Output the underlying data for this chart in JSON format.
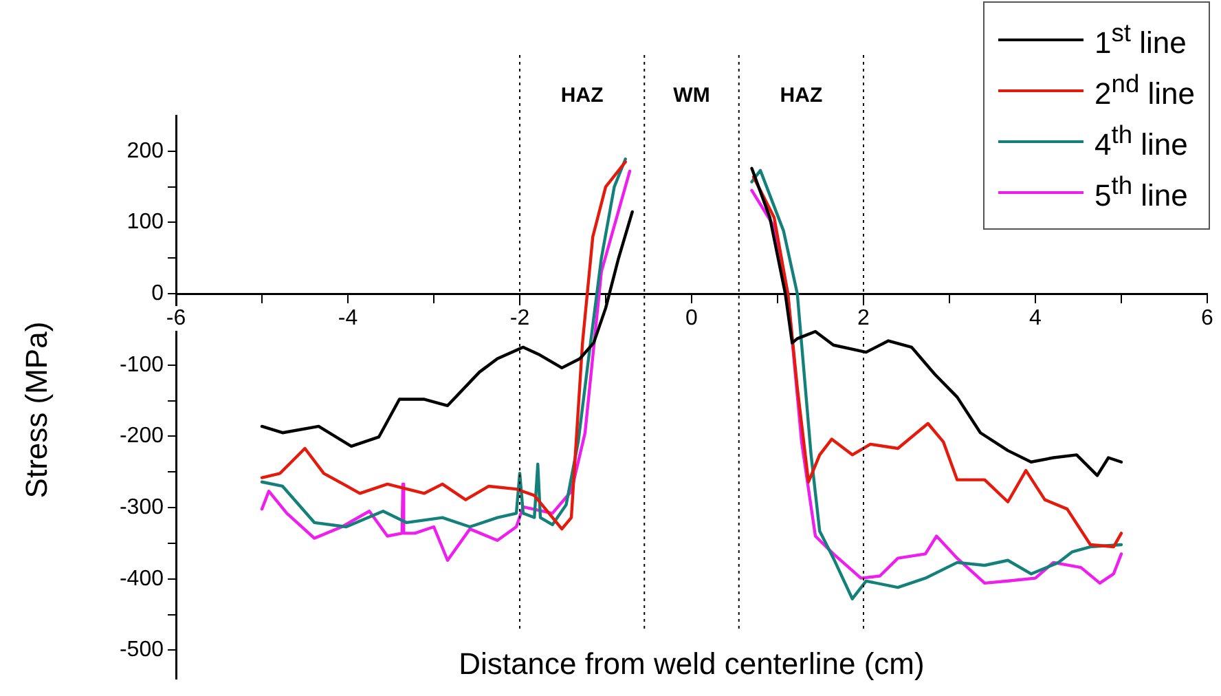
{
  "chart_data": {
    "type": "line",
    "xlabel": "Distance from weld centerline (cm)",
    "ylabel": "Stress (MPa)",
    "xlim": [
      -6,
      6
    ],
    "xticks": [
      -6,
      {
        "value": -5,
        "label": null
      },
      -4,
      {
        "value": -3,
        "label": null
      },
      -2,
      {
        "value": -1,
        "label": null
      },
      0,
      {
        "value": 1,
        "label": null
      },
      2,
      {
        "value": 3,
        "label": null
      },
      4,
      {
        "value": 5,
        "label": null
      },
      6
    ],
    "ylim": [
      -540,
      250
    ],
    "yticks": [
      -500,
      {
        "value": -450,
        "label": null
      },
      -400,
      {
        "value": -350,
        "label": null
      },
      -300,
      {
        "value": -250,
        "label": null
      },
      -200,
      {
        "value": -150,
        "label": null
      },
      -100,
      {
        "value": -50,
        "label": null
      },
      0,
      {
        "value": 50,
        "label": null
      },
      100,
      {
        "value": 150,
        "label": null
      },
      200
    ],
    "legend": "top right",
    "marker": "none",
    "line_style": "solid",
    "ref_lines": [
      {
        "axis": "x",
        "value": -2,
        "line_style": "dotted"
      },
      {
        "axis": "x",
        "value": -0.55,
        "line_style": "dotted"
      },
      {
        "axis": "x",
        "value": 0.55,
        "line_style": "dotted"
      },
      {
        "axis": "x",
        "value": 2,
        "line_style": "dotted"
      }
    ],
    "annotations": [
      "HAZ",
      "WM",
      "HAZ"
    ],
    "series": [
      {
        "name": "1$^{st}$ line",
        "color": "#000000",
        "x": [
          -5,
          -4.76,
          -4.34,
          -3.96,
          -3.64,
          -3.4,
          -3.11,
          -2.84,
          -2.47,
          -2.26,
          -1.96,
          -1.78,
          -1.51,
          -1.3,
          -1.14,
          -1.0,
          -0.85,
          -0.69,
          0,
          0.7,
          0.91,
          1.09,
          1.17,
          1.23,
          1.44,
          1.65,
          2.03,
          2.29,
          2.56,
          2.83,
          3.09,
          3.36,
          3.68,
          3.95,
          4.21,
          4.48,
          4.72,
          4.85,
          5.0
        ],
        "values": [
          -186,
          -195,
          -186,
          -214,
          -201,
          -148,
          -148,
          -157,
          -110,
          -91,
          -75,
          -85,
          -104,
          -91,
          -69,
          -20,
          50,
          115,
          null,
          176,
          107,
          0,
          -69,
          -63,
          -53,
          -72,
          -82,
          -66,
          -75,
          -113,
          -145,
          -195,
          -220,
          -236,
          -230,
          -226,
          -255,
          -230,
          -236
        ]
      },
      {
        "name": "2$^{nd}$ line",
        "color": "#e41a0c",
        "x": [
          -5,
          -4.79,
          -4.5,
          -4.28,
          -3.86,
          -3.54,
          -3.11,
          -2.9,
          -2.63,
          -2.36,
          -2.04,
          -1.83,
          -1.51,
          -1.4,
          -1.27,
          -1.15,
          -1.0,
          -0.77,
          0,
          0.72,
          0.96,
          1.12,
          1.23,
          1.36,
          1.49,
          1.63,
          1.87,
          2.08,
          2.4,
          2.75,
          2.93,
          3.09,
          3.41,
          3.68,
          3.89,
          4.11,
          4.37,
          4.64,
          4.91,
          5.0
        ],
        "values": [
          -258,
          -252,
          -217,
          -252,
          -280,
          -267,
          -280,
          -267,
          -289,
          -270,
          -274,
          -283,
          -330,
          -314,
          -69,
          80,
          150,
          185,
          null,
          164,
          107,
          0,
          -132,
          -264,
          -226,
          -204,
          -226,
          -211,
          -217,
          -182,
          -208,
          -261,
          -261,
          -292,
          -248,
          -289,
          -302,
          -352,
          -355,
          -336
        ]
      },
      {
        "name": "4$^{th}$ line",
        "color": "#14807a",
        "x": [
          -5,
          -4.76,
          -4.39,
          -4.02,
          -3.59,
          -3.32,
          -2.9,
          -2.58,
          -2.26,
          -2.04,
          -2.0,
          -1.96,
          -1.83,
          -1.79,
          -1.76,
          -1.62,
          -1.46,
          -1.32,
          -1.19,
          -1.05,
          -0.9,
          -0.77,
          0,
          0.7,
          0.8,
          1.07,
          1.23,
          1.39,
          1.49,
          1.65,
          1.87,
          2.03,
          2.4,
          2.72,
          3.09,
          3.41,
          3.68,
          3.95,
          4.27,
          4.43,
          4.64,
          5.0
        ],
        "values": [
          -264,
          -270,
          -321,
          -327,
          -305,
          -321,
          -314,
          -327,
          -314,
          -308,
          -252,
          -308,
          -314,
          -239,
          -314,
          -324,
          -296,
          -208,
          -82,
          50,
          150,
          189,
          null,
          157,
          173,
          88,
          0,
          -226,
          -333,
          -371,
          -428,
          -403,
          -412,
          -399,
          -377,
          -381,
          -374,
          -393,
          -377,
          -362,
          -355,
          -352
        ]
      },
      {
        "name": "5$^{th}$ line",
        "color": "#ee1fee",
        "x": [
          -5,
          -4.92,
          -4.71,
          -4.39,
          -4.07,
          -3.75,
          -3.54,
          -3.37,
          -3.36,
          -3.35,
          -3.22,
          -3.0,
          -2.84,
          -2.58,
          -2.26,
          -2.04,
          -1.96,
          -1.62,
          -1.4,
          -1.24,
          -1.05,
          -0.72,
          0,
          0.7,
          0.96,
          1.12,
          1.28,
          1.44,
          1.65,
          1.97,
          2.19,
          2.4,
          2.72,
          2.85,
          3.09,
          3.41,
          3.68,
          4.0,
          4.21,
          4.53,
          4.75,
          4.91,
          5.0
        ],
        "values": [
          -302,
          -277,
          -308,
          -343,
          -327,
          -305,
          -340,
          -336,
          -267,
          -336,
          -336,
          -327,
          -374,
          -330,
          -346,
          -327,
          -299,
          -308,
          -277,
          -195,
          31,
          172,
          null,
          145,
          94,
          0,
          -208,
          -340,
          -365,
          -399,
          -396,
          -371,
          -365,
          -340,
          -371,
          -406,
          -403,
          -399,
          -377,
          -384,
          -406,
          -393,
          -365
        ]
      }
    ]
  }
}
